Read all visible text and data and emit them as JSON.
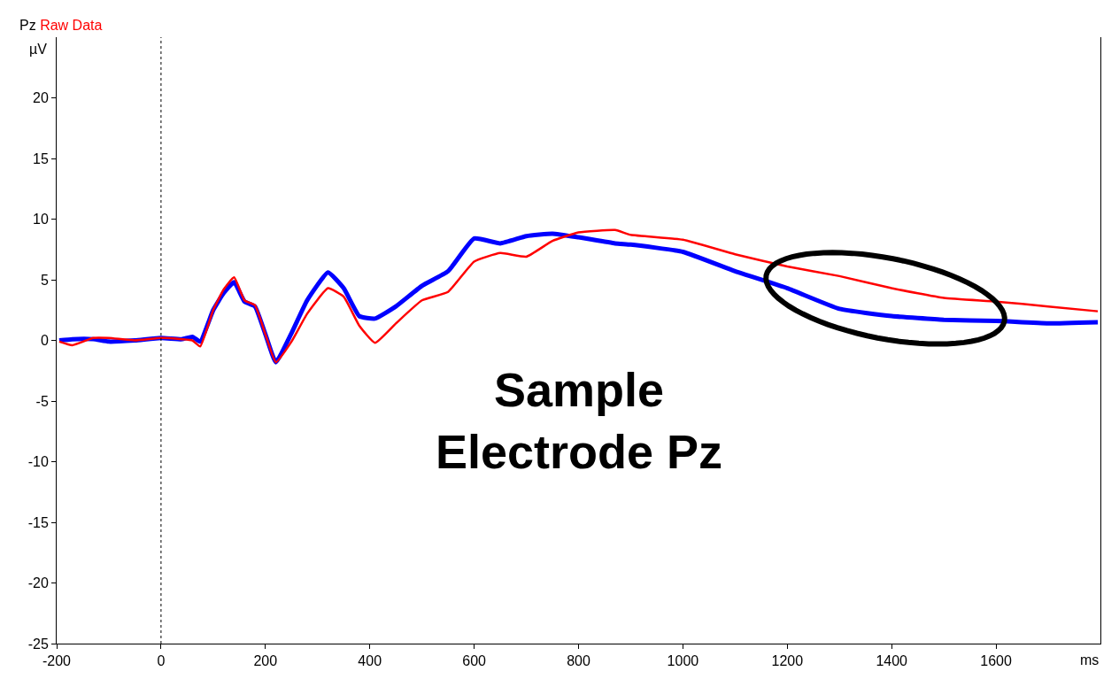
{
  "chart_data": {
    "type": "line",
    "title": "Pz",
    "xlabel": "ms",
    "ylabel": "µV",
    "x": [
      -195,
      -170,
      -130,
      -100,
      -50,
      0,
      40,
      60,
      75,
      100,
      120,
      140,
      160,
      180,
      200,
      220,
      250,
      280,
      320,
      350,
      380,
      410,
      450,
      500,
      550,
      600,
      650,
      700,
      750,
      800,
      870,
      900,
      1000,
      1100,
      1200,
      1300,
      1400,
      1500,
      1600,
      1700,
      1795
    ],
    "series": [
      {
        "color": "#0000ff",
        "values": [
          0.0,
          0.1,
          0.1,
          -0.1,
          0.0,
          0.2,
          0.1,
          0.3,
          -0.1,
          2.5,
          3.9,
          4.8,
          3.2,
          2.8,
          0.5,
          -1.8,
          0.6,
          3.3,
          5.6,
          4.3,
          2.0,
          1.8,
          2.8,
          4.5,
          5.7,
          8.4,
          8.0,
          8.6,
          8.8,
          8.5,
          8.0,
          7.9,
          7.3,
          5.7,
          4.3,
          2.6,
          2.0,
          1.7,
          1.6,
          1.4,
          1.5
        ]
      },
      {
        "name": "Raw Data",
        "color": "#ff0000",
        "values": [
          -0.1,
          -0.4,
          0.2,
          0.2,
          0.0,
          0.2,
          0.1,
          0.0,
          -0.5,
          2.5,
          4.2,
          5.2,
          3.3,
          2.9,
          0.5,
          -1.8,
          -0.1,
          2.2,
          4.3,
          3.6,
          1.2,
          -0.2,
          1.4,
          3.3,
          4.0,
          6.5,
          7.2,
          6.9,
          8.2,
          8.9,
          9.1,
          8.7,
          8.3,
          7.1,
          6.1,
          5.3,
          4.3,
          3.5,
          3.2,
          2.8,
          2.4
        ]
      }
    ],
    "xlim": [
      -200,
      1800
    ],
    "xticks": [
      -200,
      0,
      200,
      400,
      600,
      800,
      1000,
      1200,
      1400,
      1600
    ],
    "ylim": [
      -25,
      25
    ],
    "yticks": [
      -25,
      -20,
      -15,
      -10,
      -5,
      0,
      5,
      10,
      15,
      20
    ],
    "ref_lines": [
      {
        "axis": "x",
        "value": 0,
        "color": "#000000",
        "line_style": "dotted"
      }
    ],
    "annotations": [
      "Sample\nElectrode Pz"
    ]
  }
}
